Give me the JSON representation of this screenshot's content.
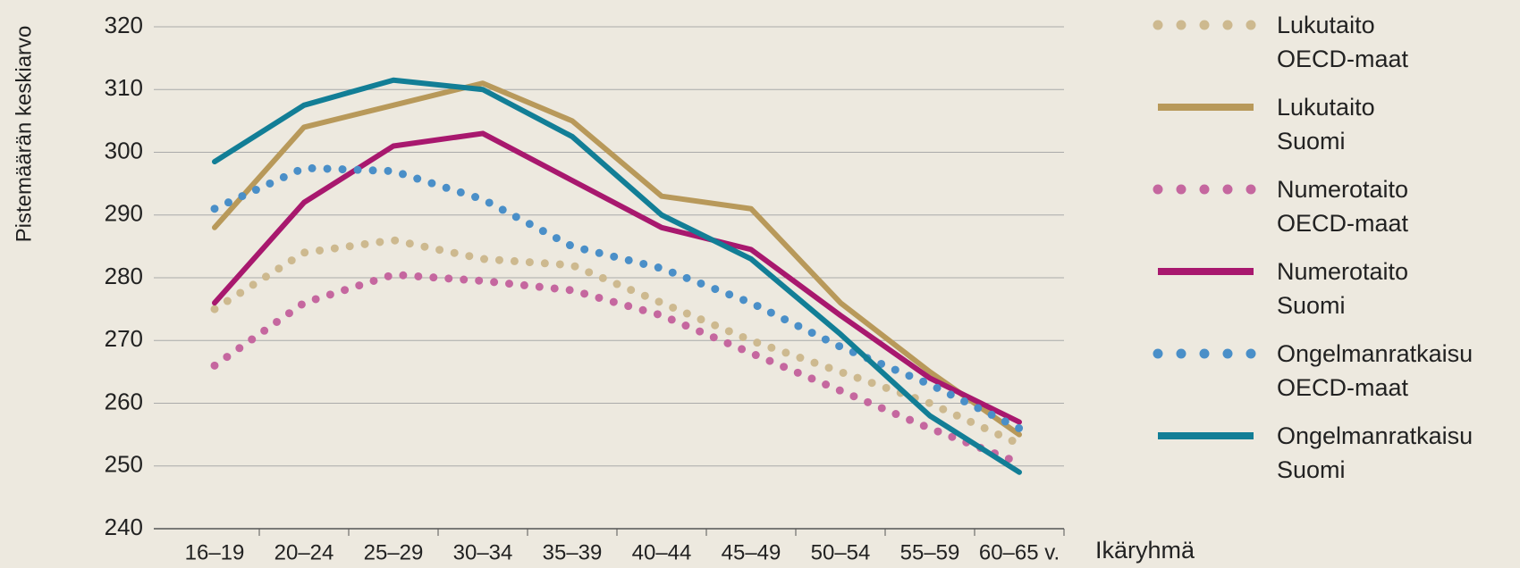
{
  "chart_data": {
    "type": "line",
    "y_label": "Pistemäärän keskiarvo",
    "x_label": "Ikäryhmä",
    "categories": [
      "16–19",
      "20–24",
      "25–29",
      "30–34",
      "35–39",
      "40–44",
      "45–49",
      "50–54",
      "55–59",
      "60–65 v."
    ],
    "ylim": [
      240,
      320
    ],
    "yticks": [
      240,
      250,
      260,
      270,
      280,
      290,
      300,
      310,
      320
    ],
    "grid": true,
    "series": [
      {
        "name": "Lukutaito\nOECD-maat",
        "color": "#cdb98f",
        "style": "dotted",
        "values": [
          275,
          284,
          286,
          283,
          282,
          276,
          270,
          265,
          260,
          253.5
        ]
      },
      {
        "name": "Lukutaito\nSuomi",
        "color": "#b8995a",
        "style": "solid",
        "values": [
          288,
          304,
          307.5,
          311,
          305,
          293,
          291,
          276,
          265,
          255
        ]
      },
      {
        "name": "Numerotaito\nOECD-maat",
        "color": "#c5679f",
        "style": "dotted",
        "values": [
          266,
          276,
          280.5,
          279.5,
          278,
          274,
          268,
          262,
          256,
          250.5
        ]
      },
      {
        "name": "Numerotaito\nSuomi",
        "color": "#a8186e",
        "style": "solid",
        "values": [
          276,
          292,
          301,
          303,
          295.5,
          288,
          284.5,
          274,
          264,
          257
        ]
      },
      {
        "name": "Ongelmanratkaisu\nOECD-maat",
        "color": "#4a8fc8",
        "style": "dotted",
        "values": [
          291,
          297.5,
          297,
          292.5,
          285,
          281.5,
          276,
          269,
          263,
          256
        ]
      },
      {
        "name": "Ongelmanratkaisu\nSuomi",
        "color": "#127e96",
        "style": "solid",
        "values": [
          298.5,
          307.5,
          311.5,
          310,
          302.5,
          290,
          283,
          271,
          258,
          249
        ]
      }
    ]
  }
}
